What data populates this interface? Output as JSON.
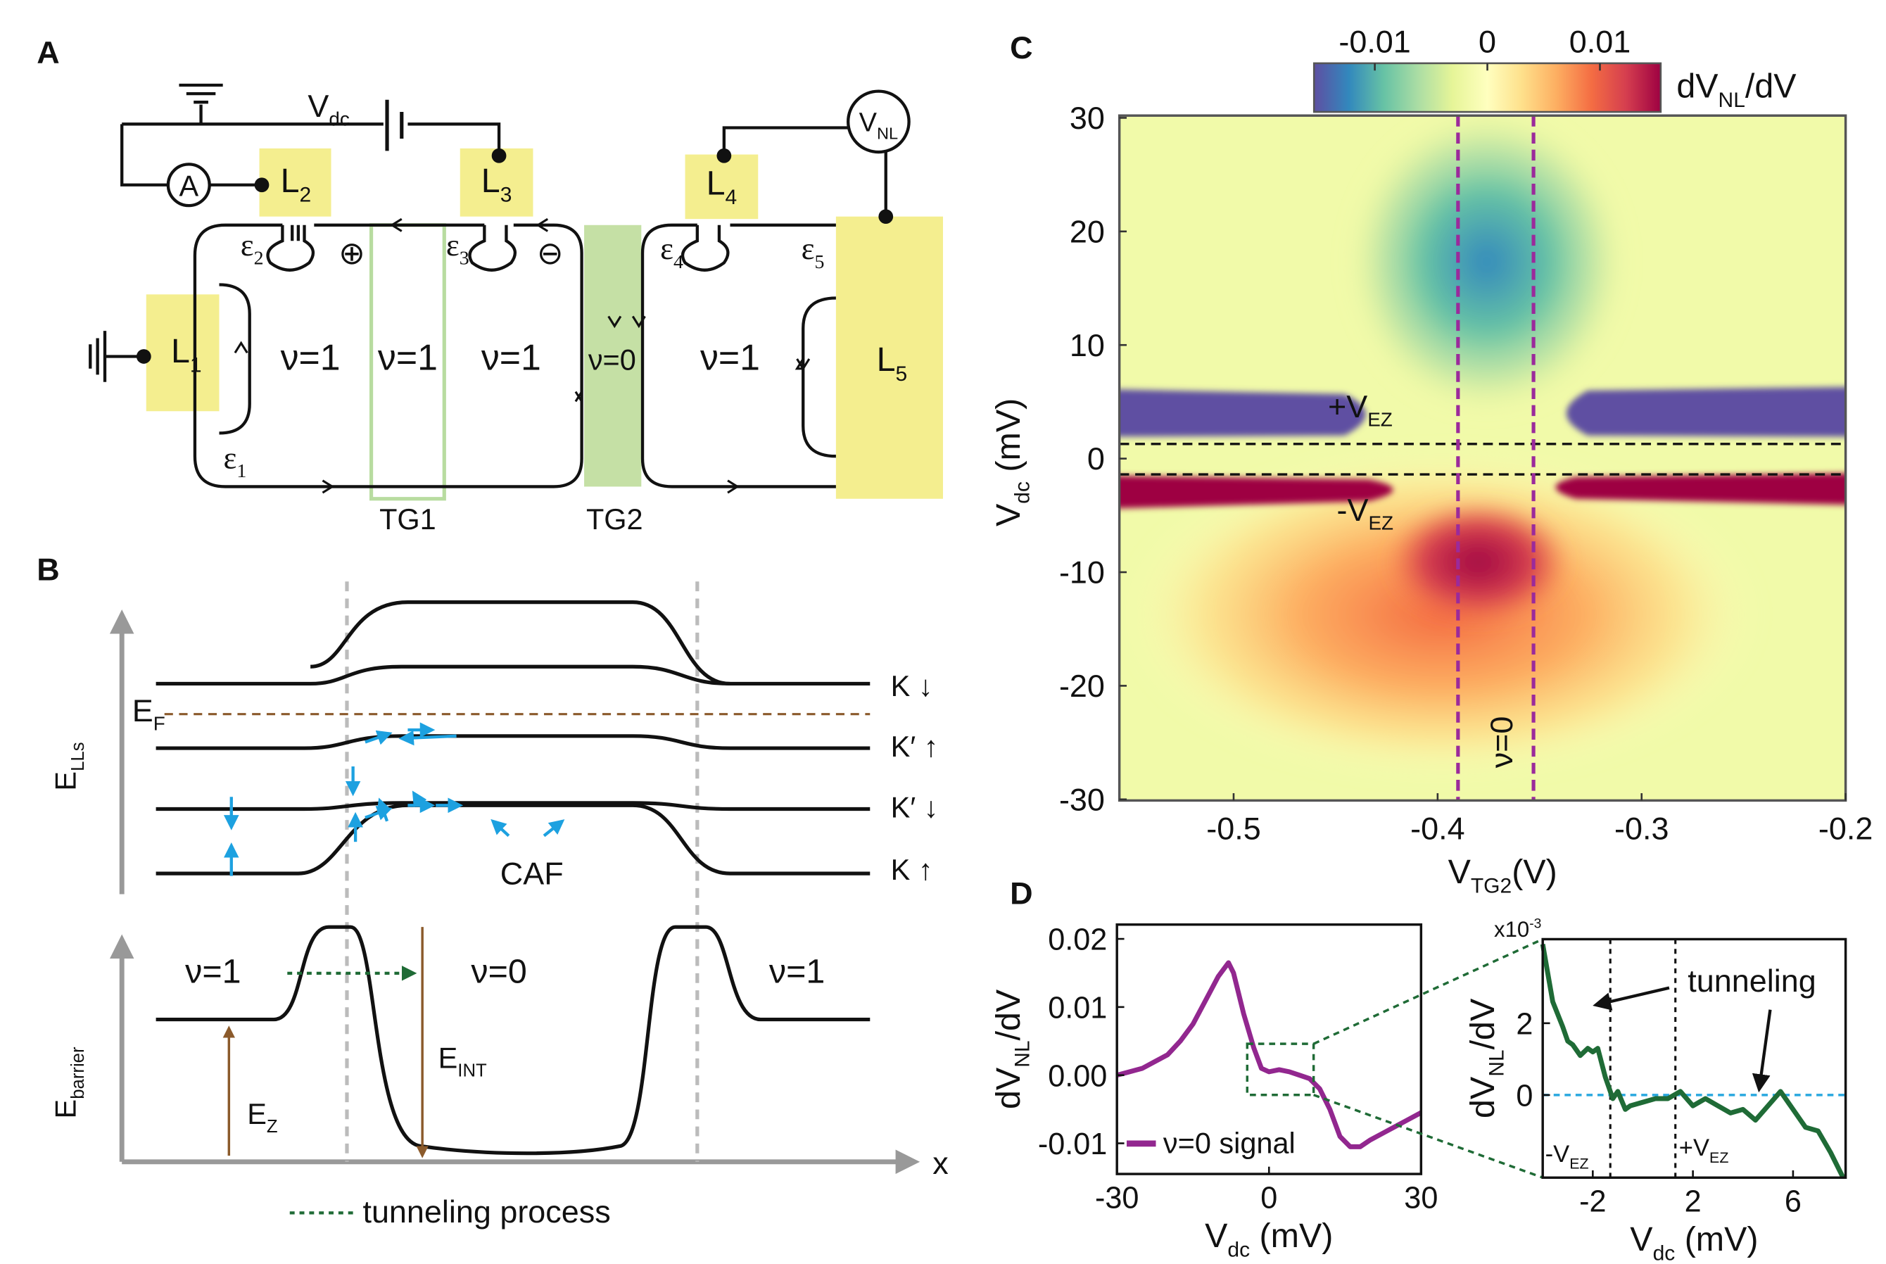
{
  "panel_a": {
    "letter": "A",
    "labels": [
      {
        "text": "V",
        "sub": "dc"
      },
      "A",
      {
        "text": "V",
        "sub": "NL"
      },
      {
        "text": "L",
        "sub": "2"
      },
      {
        "text": "L",
        "sub": "3"
      },
      {
        "text": "L",
        "sub": "4"
      },
      {
        "text": "L",
        "sub": "1"
      },
      {
        "text": "L",
        "sub": "5"
      },
      {
        "text": "ε",
        "sub": "2"
      },
      {
        "text": "ε",
        "sub": "3"
      },
      {
        "text": "ε",
        "sub": "4"
      },
      {
        "text": "ε",
        "sub": "5"
      },
      {
        "text": "ε",
        "sub": "1"
      },
      "⊕",
      "⊖",
      "ν=1",
      "ν=1",
      "ν=1",
      "ν=0",
      "ν=1",
      "TG1",
      "TG2"
    ]
  },
  "panel_b": {
    "letter": "B",
    "labels": [
      {
        "text": "E",
        "sub": "F"
      },
      {
        "text": "E",
        "sub": "LLs"
      },
      "K  ↓",
      "K′ ↑",
      "K′ ↓",
      "K  ↑",
      "CAF",
      "ν=1",
      "ν=0",
      "ν=1",
      {
        "text": "E",
        "sub": "INT"
      },
      {
        "text": "E",
        "sub": "Z"
      },
      {
        "text": "E",
        "sub": "barrier"
      },
      "x",
      "tunneling process"
    ]
  },
  "chart_data": [
    {
      "type": "heatmap",
      "panel": "C",
      "xlim": [
        -0.556,
        -0.2
      ],
      "ylim": [
        -30.1,
        30.2
      ],
      "xticks": [
        -0.5,
        -0.4,
        -0.3,
        -0.2
      ],
      "yticks": [
        30,
        20,
        10,
        0,
        -10,
        -20,
        -30
      ],
      "xlabel": {
        "text": "V",
        "sub": "TG2",
        "after": "(V)"
      },
      "ylabel": {
        "text": "V",
        "sub": "dc",
        "after": " (mV)"
      },
      "colorbar": {
        "label": {
          "text": "dV",
          "sub": "NL",
          "after": "/dV"
        },
        "clim": [
          -0.0154,
          0.0154
        ],
        "ticks": [
          -0.01,
          0,
          0.01
        ],
        "colors": [
          "#5e4fa2",
          "#3288bd",
          "#66c2a5",
          "#abdda4",
          "#e6f598",
          "#ffffbf",
          "#fee08b",
          "#fdae61",
          "#f46d43",
          "#d53e4f",
          "#9e0142"
        ]
      },
      "vlines": [
        -0.39,
        -0.353
      ],
      "vline_color": "#9b2a9b",
      "hlines": [
        1.29,
        -1.39
      ],
      "annotations": [
        {
          "text": "+V",
          "sub": "EZ"
        },
        {
          "text": "-V",
          "sub": "EZ"
        },
        "ν=0"
      ]
    },
    {
      "type": "line",
      "panel": "D",
      "xlim": [
        -30,
        30
      ],
      "ylim": [
        -0.0145,
        0.0221
      ],
      "xticks": [
        -30,
        0,
        30
      ],
      "yticks": [
        0.02,
        0.01,
        {
          "value": 0,
          "label": "0.00"
        },
        -0.01
      ],
      "xlabel": {
        "text": "V",
        "sub": "dc",
        "after": " (mV)"
      },
      "ylabel": {
        "text": "dV",
        "sub": "NL",
        "after": "/dV"
      },
      "x": [
        -30,
        -27.5,
        -25,
        -22.5,
        -20,
        -17.5,
        -15,
        -12.5,
        -10,
        -8,
        -7,
        -5,
        -3,
        -1.5,
        0,
        2,
        4,
        6,
        8,
        10,
        12,
        14,
        16,
        18,
        20,
        22.5,
        25,
        27.5,
        30
      ],
      "series": [
        {
          "name": "ν=0 signal",
          "color": "#92278f",
          "values": [
            0,
            0.0005,
            0.001,
            0.002,
            0.003,
            0.005,
            0.0075,
            0.011,
            0.0145,
            0.0165,
            0.015,
            0.009,
            0.004,
            0.001,
            0.0005,
            0.0008,
            0.0005,
            0,
            -0.0005,
            -0.002,
            -0.005,
            -0.009,
            -0.0105,
            -0.0105,
            -0.0095,
            -0.0085,
            -0.0075,
            -0.0065,
            -0.0055
          ]
        }
      ],
      "zoom_box": {
        "x": [
          -4.3,
          8.8
        ],
        "y": [
          -0.0029,
          0.0046
        ]
      }
    },
    {
      "type": "line",
      "xlim": [
        -4,
        8.1
      ],
      "ylim": [
        -2.3,
        4.34
      ],
      "xticks": [
        -2,
        2,
        6
      ],
      "yticks": [
        0,
        2
      ],
      "multiplier": {
        "text": "x10",
        "sup": "-3"
      },
      "xlabel": {
        "text": "V",
        "sub": "dc",
        "after": " (mV)"
      },
      "ylabel": {
        "text": "dV",
        "sub": "NL",
        "after": "/dV"
      },
      "x": [
        -4,
        -3.6,
        -3.2,
        -3,
        -2.8,
        -2.5,
        -2.2,
        -2,
        -1.8,
        -1.5,
        -1.2,
        -1,
        -0.7,
        -0.5,
        0,
        0.5,
        1,
        1.5,
        2,
        2.5,
        3,
        3.5,
        4,
        4.5,
        5,
        5.5,
        6,
        6.5,
        7,
        7.5,
        8
      ],
      "series": [
        {
          "color": "#1f6b36",
          "values": [
            4.2,
            2.6,
            1.9,
            1.5,
            1.4,
            1.1,
            1.3,
            1.2,
            1.3,
            0.5,
            -0.1,
            0.1,
            -0.4,
            -0.3,
            -0.2,
            -0.1,
            -0.1,
            0.1,
            -0.3,
            -0.1,
            -0.3,
            -0.5,
            -0.4,
            -0.7,
            -0.3,
            0.1,
            -0.4,
            -0.9,
            -1,
            -1.6,
            -2.3
          ]
        }
      ],
      "vlines": [
        -1.3,
        1.3
      ],
      "hlines": [
        0
      ],
      "hline_color": "#29a8df",
      "annotations": [
        "tunneling",
        {
          "text": "-V",
          "sub": "EZ"
        },
        {
          "text": "+V",
          "sub": "EZ"
        }
      ]
    }
  ]
}
